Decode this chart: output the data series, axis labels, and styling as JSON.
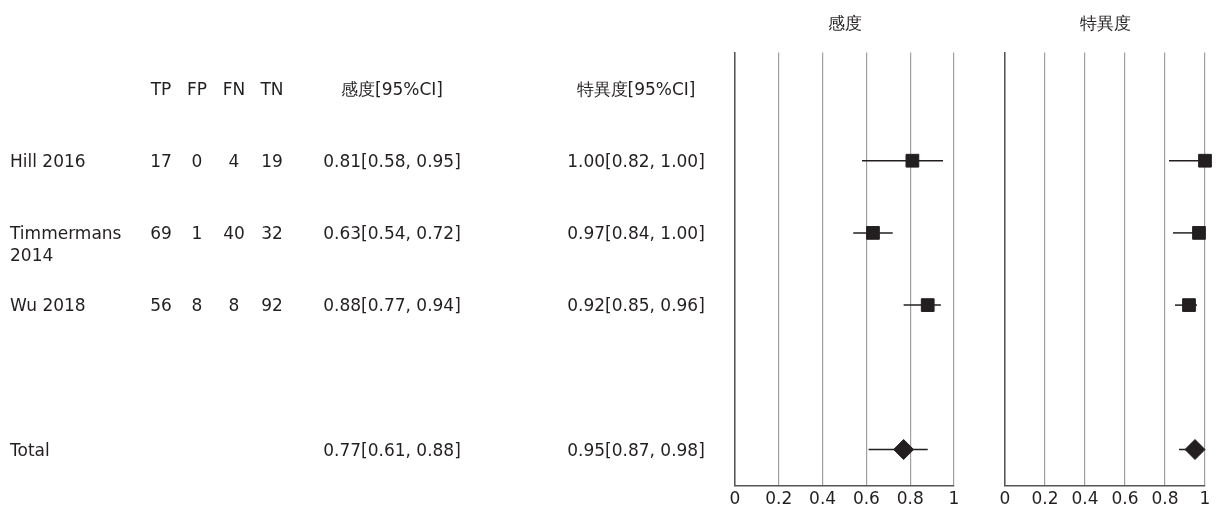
{
  "chart_data": [
    {
      "type": "other",
      "data_labels": true,
      "categories": [
        null,
        "Hill 2016",
        "Timmermans 2014",
        "Wu 2018",
        null,
        "Total"
      ],
      "series": [
        {
          "name": "TP",
          "values": [
            null,
            17,
            69,
            56,
            null,
            null
          ]
        },
        {
          "name": "FP",
          "values": [
            null,
            0,
            1,
            8,
            null,
            null
          ]
        },
        {
          "name": "FN",
          "values": [
            null,
            4,
            40,
            8,
            null,
            null
          ]
        },
        {
          "name": "TN",
          "values": [
            null,
            19,
            32,
            92,
            null,
            null
          ]
        },
        {
          "name": "感度[95%CI]",
          "values": [
            null,
            0.81,
            0.63,
            0.88,
            null,
            0.77
          ],
          "value_labels": [
            null,
            "0.81[0.58, 0.95]",
            "0.63[0.54, 0.72]",
            "0.88[0.77, 0.94]",
            null,
            "0.77[0.61, 0.88]"
          ]
        },
        {
          "name": "特異度[95%CI]",
          "values": [
            null,
            1.0,
            0.97,
            0.92,
            null,
            0.95
          ],
          "value_labels": [
            null,
            "1.00[0.82, 1.00]",
            "0.97[0.84, 1.00]",
            "0.92[0.85, 0.96]",
            null,
            "0.95[0.87, 0.98]"
          ]
        }
      ]
    },
    {
      "type": "scatter",
      "orientation": "horizontal",
      "title": "感度",
      "categories": [
        null,
        null,
        null,
        null,
        null,
        null
      ],
      "xlim": [
        0,
        1
      ],
      "xticks": [
        0,
        0.2,
        0.4,
        0.6,
        0.8,
        1
      ],
      "grid": "x",
      "tick_labels": "x",
      "legend": false,
      "series": [
        {
          "color": "#231f20",
          "marker": "square",
          "values": [
            null,
            0.81,
            0.63,
            0.88,
            null,
            null
          ],
          "errors": [
            null,
            [
              0.58,
              0.95
            ],
            [
              0.54,
              0.72
            ],
            [
              0.77,
              0.94
            ],
            null,
            null
          ]
        },
        {
          "color": "#231f20",
          "marker": "diamond",
          "values": [
            null,
            null,
            null,
            null,
            null,
            0.77
          ],
          "errors": [
            null,
            null,
            null,
            null,
            null,
            [
              0.61,
              0.88
            ]
          ]
        }
      ]
    },
    {
      "type": "scatter",
      "orientation": "horizontal",
      "title": "特異度",
      "categories": [
        null,
        null,
        null,
        null,
        null,
        null
      ],
      "xlim": [
        0,
        1
      ],
      "xticks": [
        0,
        0.2,
        0.4,
        0.6,
        0.8,
        1
      ],
      "grid": "x",
      "tick_labels": "x",
      "legend": false,
      "series": [
        {
          "color": "#231f20",
          "marker": "square",
          "values": [
            null,
            1.0,
            0.97,
            0.92,
            null,
            null
          ],
          "errors": [
            null,
            [
              0.82,
              1.0
            ],
            [
              0.84,
              1.0
            ],
            [
              0.85,
              0.96
            ],
            null,
            null
          ]
        },
        {
          "color": "#231f20",
          "marker": "diamond",
          "values": [
            null,
            null,
            null,
            null,
            null,
            0.95
          ],
          "errors": [
            null,
            null,
            null,
            null,
            null,
            [
              0.87,
              0.98
            ]
          ]
        }
      ]
    }
  ]
}
